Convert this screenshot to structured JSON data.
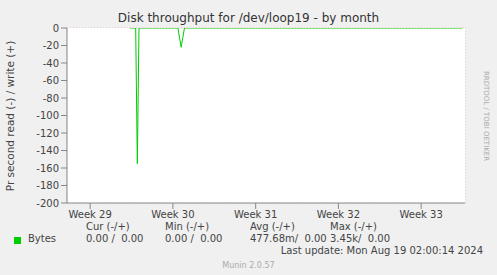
{
  "chart_data": {
    "type": "line",
    "title": "Disk throughput for /dev/loop19 - by month",
    "y_label": "Pr second read (-) / write (+)",
    "x": [
      29.48,
      29.55,
      29.57,
      29.59,
      29.7,
      29.9,
      30.06,
      30.1,
      30.14,
      30.4,
      30.8,
      31.2,
      31.6,
      32.0,
      32.4,
      32.8,
      33.2,
      33.5
    ],
    "series": [
      {
        "name": "Bytes",
        "color": "#00cc00",
        "values": [
          0,
          0,
          -155,
          0,
          0,
          0,
          0,
          -22,
          0,
          0,
          0,
          0,
          0,
          0,
          0,
          0,
          0,
          0
        ]
      }
    ],
    "xlim": [
      28.72,
      33.53
    ],
    "xticks": [
      {
        "value": 29,
        "label": "Week 29"
      },
      {
        "value": 30,
        "label": "Week 30"
      },
      {
        "value": 31,
        "label": "Week 31"
      },
      {
        "value": 32,
        "label": "Week 32"
      },
      {
        "value": 33,
        "label": "Week 33"
      }
    ],
    "ylim": [
      -200,
      0
    ],
    "yticks": [
      0,
      -20,
      -40,
      -60,
      -80,
      -100,
      -120,
      -140,
      -160,
      -180,
      -200
    ],
    "grid": true,
    "stats": {
      "headers": [
        "Cur (-/+)",
        "Min (-/+)",
        "Avg (-/+)",
        "Max (-/+)"
      ],
      "rows": [
        {
          "name": "Bytes",
          "cells": [
            "0.00 /  0.00",
            "0.00 /  0.00",
            "477.68m/  0.00",
            "3.45k/  0.00"
          ]
        }
      ]
    },
    "last_update": "Last update: Mon Aug 19 02:00:14 2024",
    "watermark": "RRDTOOL / TOBI OETIKER",
    "credit": "Munin 2.0.57"
  }
}
